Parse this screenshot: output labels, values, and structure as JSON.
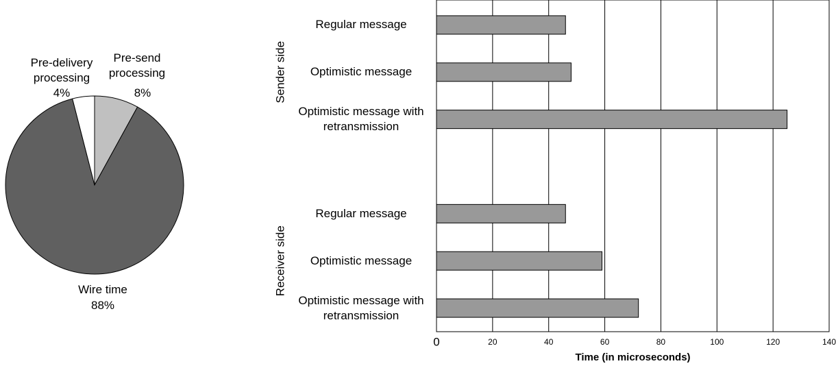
{
  "chart_data": [
    {
      "type": "pie",
      "categories": [
        "Pre-send processing",
        "Wire time",
        "Pre-delivery processing"
      ],
      "values": [
        8,
        88,
        4
      ],
      "value_labels": [
        "8%",
        "88%",
        "4%"
      ],
      "colors": [
        "#c0c0c0",
        "#606060",
        "#ffffff"
      ]
    },
    {
      "type": "hbar",
      "categories": [
        "Regular  message",
        "Optimistic message",
        "Optimistic message with retransmission",
        null,
        "Regular  message",
        "Optimistic message",
        "Optimistic message with retransmission"
      ],
      "values": [
        46,
        48,
        125,
        null,
        46,
        59,
        72
      ],
      "groups": [
        "Sender side",
        "Receiver side"
      ],
      "color": "#999999",
      "xlabel": "Time (in microseconds)",
      "xlim": [
        0,
        140
      ],
      "xticks": [
        0,
        20,
        40,
        60,
        80,
        100,
        120,
        140
      ],
      "grid": true
    }
  ]
}
